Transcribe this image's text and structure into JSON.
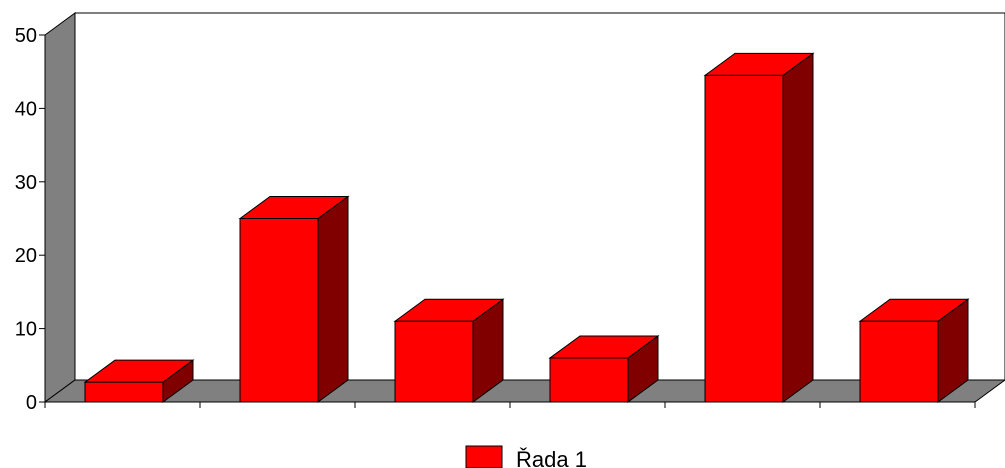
{
  "chart_data": {
    "type": "bar",
    "title": "",
    "xlabel": "",
    "ylabel": "",
    "ylim": [
      0,
      50
    ],
    "y_ticks": [
      0,
      10,
      20,
      30,
      40,
      50
    ],
    "categories": [
      "",
      "",
      "",
      "",
      "",
      ""
    ],
    "series": [
      {
        "name": "Řada 1",
        "values": [
          2.7,
          25,
          11,
          6,
          44.5,
          11
        ]
      }
    ],
    "three_d": true,
    "legend": "bottom-center",
    "grid": false,
    "colors": {
      "bar_front": "#ff0000",
      "bar_top": "#ff0000",
      "bar_side": "#800000",
      "wall": "#808080",
      "floor": "#808080",
      "edge": "#000000"
    }
  }
}
